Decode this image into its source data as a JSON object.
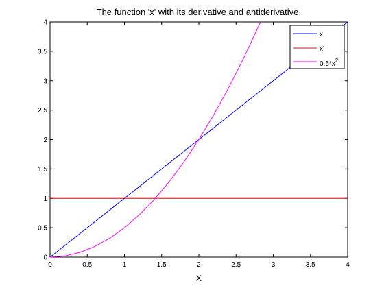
{
  "chart_data": {
    "type": "line",
    "title": "The function 'x' with its derivative and antiderivative",
    "xlabel": "X",
    "ylabel": "",
    "xlim": [
      0,
      4
    ],
    "ylim": [
      0,
      4
    ],
    "x_ticks": [
      "0",
      "0.5",
      "1",
      "1.5",
      "2",
      "2.5",
      "3",
      "3.5",
      "4"
    ],
    "y_ticks": [
      "0",
      "0.5",
      "1",
      "1.5",
      "2",
      "2.5",
      "3",
      "3.5",
      "4"
    ],
    "grid": false,
    "legend_position": "top-right",
    "series": [
      {
        "name": "x",
        "color": "#0000ff",
        "x": [
          0,
          4
        ],
        "y": [
          0,
          4
        ]
      },
      {
        "name": "x'",
        "color": "#ff0000",
        "x": [
          0,
          4
        ],
        "y": [
          1,
          1
        ]
      },
      {
        "name": "0.5*x",
        "name_superscript": "2",
        "color": "#ff00ff",
        "x": [
          0,
          0.2,
          0.4,
          0.6,
          0.8,
          1.0,
          1.2,
          1.4,
          1.6,
          1.8,
          2.0,
          2.2,
          2.4,
          2.6,
          2.8,
          2.8284
        ],
        "y": [
          0,
          0.02,
          0.08,
          0.18,
          0.32,
          0.5,
          0.72,
          0.98,
          1.28,
          1.62,
          2.0,
          2.42,
          2.88,
          3.38,
          3.92,
          4.0
        ]
      }
    ]
  }
}
